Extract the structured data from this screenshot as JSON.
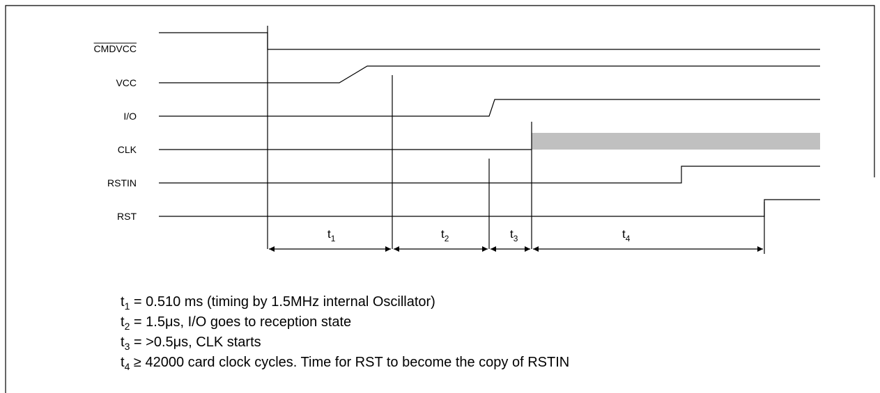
{
  "signals": [
    {
      "label": "CMDVCC",
      "overline": true
    },
    {
      "label": "VCC"
    },
    {
      "label": "I/O"
    },
    {
      "label": "CLK"
    },
    {
      "label": "RSTIN"
    },
    {
      "label": "RST"
    }
  ],
  "intervals": [
    {
      "name": "t",
      "sub": "1"
    },
    {
      "name": "t",
      "sub": "2"
    },
    {
      "name": "t",
      "sub": "3"
    },
    {
      "name": "t",
      "sub": "4"
    }
  ],
  "notes": [
    {
      "name": "t",
      "sub": "1",
      "text": " = 0.510 ms (timing by 1.5MHz internal Oscillator)"
    },
    {
      "name": "t",
      "sub": "2",
      "text": " = 1.5μs, I/O goes to reception state"
    },
    {
      "name": "t",
      "sub": "3",
      "text": " = >0.5μs, CLK starts"
    },
    {
      "name": "t",
      "sub": "4",
      "text": " ≥ 42000 card clock cycles.  Time for RST to become the copy of RSTIN"
    }
  ]
}
